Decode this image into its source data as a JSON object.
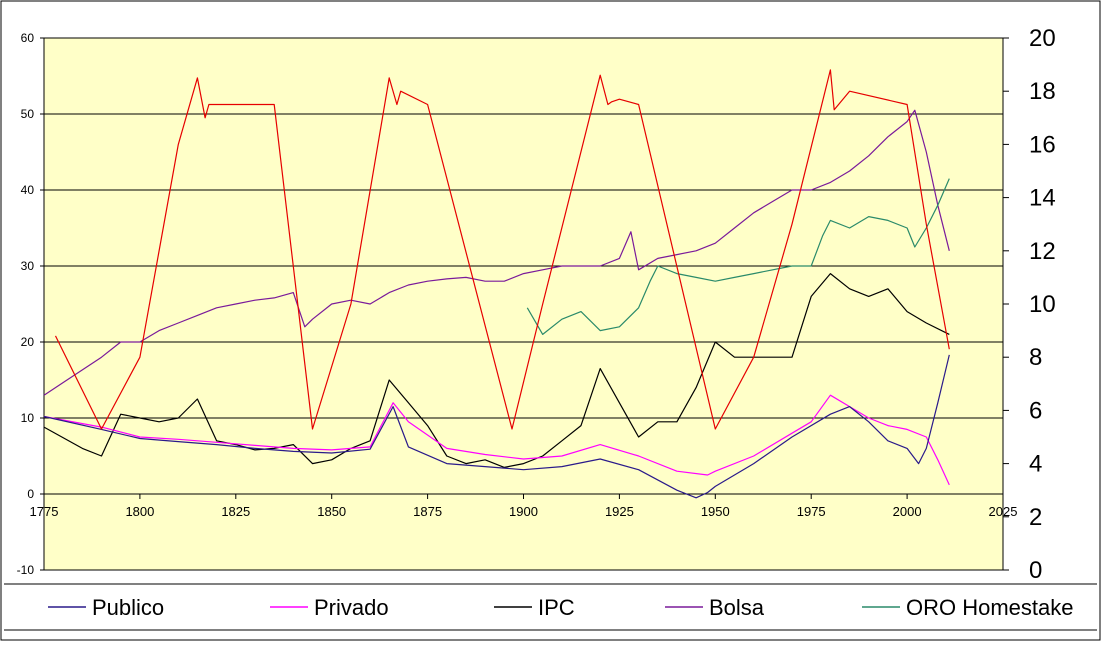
{
  "chart_data": {
    "type": "line",
    "title": "",
    "xlabel": "",
    "ylabel": "",
    "xlim": [
      1775,
      2025
    ],
    "ylim_left": [
      -10,
      60
    ],
    "ylim_right": [
      0,
      20
    ],
    "x_ticks": [
      "1775",
      "1800",
      "1825",
      "1850",
      "1875",
      "1900",
      "1925",
      "1950",
      "1975",
      "2000",
      "2025"
    ],
    "y_left_ticks": [
      "60",
      "50",
      "40",
      "30",
      "20",
      "10",
      "0",
      "-10"
    ],
    "y_right_ticks": [
      "20",
      "18",
      "16",
      "14",
      "12",
      "10",
      "8",
      "6",
      "4",
      "2",
      "0"
    ],
    "grid": "horizontal",
    "background": "#ffffc8",
    "legend_position": "bottom",
    "legend": [
      "Publico",
      "Privado",
      "IPC",
      "Bolsa",
      "ORO Homestake"
    ],
    "series": [
      {
        "name": "Publico",
        "axis": "left",
        "color": "#2a1a8a",
        "x": [
          1775,
          1790,
          1800,
          1810,
          1820,
          1830,
          1840,
          1850,
          1860,
          1866,
          1870,
          1880,
          1890,
          1900,
          1910,
          1920,
          1930,
          1940,
          1945,
          1948,
          1950,
          1960,
          1970,
          1980,
          1985,
          1990,
          1995,
          2000,
          2003,
          2005,
          2008,
          2011
        ],
        "y": [
          10.2,
          8.5,
          7.3,
          6.9,
          6.5,
          6.0,
          5.6,
          5.4,
          5.9,
          11.5,
          6.2,
          4.0,
          3.6,
          3.2,
          3.6,
          4.6,
          3.2,
          0.5,
          -0.5,
          0.2,
          1.0,
          4.0,
          7.5,
          10.5,
          11.5,
          9.5,
          7.0,
          6.0,
          4.0,
          6.0,
          12.0,
          18.3
        ]
      },
      {
        "name": "Privado",
        "axis": "left",
        "color": "#ff00ff",
        "x": [
          1775,
          1790,
          1800,
          1810,
          1820,
          1830,
          1840,
          1850,
          1860,
          1866,
          1870,
          1880,
          1890,
          1900,
          1910,
          1920,
          1930,
          1940,
          1948,
          1950,
          1960,
          1970,
          1975,
          1980,
          1985,
          1990,
          1995,
          2000,
          2005,
          2008,
          2011
        ],
        "y": [
          10.2,
          8.8,
          7.5,
          7.2,
          6.8,
          6.4,
          6.0,
          5.8,
          6.2,
          12.0,
          9.5,
          6.0,
          5.2,
          4.6,
          5.0,
          6.5,
          5.0,
          3.0,
          2.5,
          3.0,
          5.0,
          8.0,
          9.5,
          13.0,
          11.5,
          10.0,
          9.0,
          8.5,
          7.5,
          4.5,
          1.2
        ]
      },
      {
        "name": "IPC",
        "axis": "left",
        "color": "#000000",
        "x": [
          1775,
          1785,
          1790,
          1795,
          1800,
          1805,
          1810,
          1815,
          1820,
          1825,
          1830,
          1835,
          1840,
          1845,
          1850,
          1855,
          1860,
          1865,
          1870,
          1875,
          1880,
          1885,
          1890,
          1895,
          1900,
          1905,
          1910,
          1915,
          1920,
          1925,
          1930,
          1935,
          1940,
          1945,
          1950,
          1955,
          1960,
          1965,
          1970,
          1975,
          1980,
          1985,
          1990,
          1995,
          2000,
          2005,
          2011
        ],
        "y": [
          8.8,
          6.0,
          5.0,
          10.5,
          10.0,
          9.5,
          10.0,
          12.5,
          7.0,
          6.5,
          5.8,
          6.0,
          6.5,
          4.0,
          4.5,
          6.0,
          7.0,
          15.0,
          12.0,
          9.0,
          5.0,
          4.0,
          4.5,
          3.5,
          4.0,
          5.0,
          7.0,
          9.0,
          16.5,
          12.0,
          7.5,
          9.5,
          9.5,
          14.0,
          20.0,
          18.0,
          18.0,
          18.0,
          18.0,
          26.0,
          29.0,
          27.0,
          26.0,
          27.0,
          24.0,
          22.5,
          21.0
        ]
      },
      {
        "name": "Bolsa",
        "axis": "left",
        "color": "#7a1a9a",
        "x": [
          1775,
          1790,
          1795,
          1800,
          1805,
          1810,
          1815,
          1820,
          1825,
          1830,
          1835,
          1840,
          1843,
          1845,
          1850,
          1855,
          1860,
          1865,
          1870,
          1875,
          1880,
          1885,
          1890,
          1895,
          1900,
          1905,
          1910,
          1915,
          1920,
          1925,
          1928,
          1930,
          1935,
          1940,
          1945,
          1950,
          1955,
          1960,
          1965,
          1970,
          1975,
          1980,
          1985,
          1990,
          1995,
          2000,
          2002,
          2005,
          2008,
          2011
        ],
        "y": [
          13.0,
          18.0,
          20.0,
          20.0,
          21.5,
          22.5,
          23.5,
          24.5,
          25.0,
          25.5,
          25.8,
          26.5,
          22.0,
          23.0,
          25.0,
          25.5,
          25.0,
          26.5,
          27.5,
          28.0,
          28.3,
          28.5,
          28.0,
          28.0,
          29.0,
          29.5,
          30.0,
          30.0,
          30.0,
          31.0,
          34.5,
          29.5,
          31.0,
          31.5,
          32.0,
          33.0,
          35.0,
          37.0,
          38.5,
          40.0,
          40.0,
          41.0,
          42.5,
          44.5,
          47.0,
          49.0,
          50.5,
          45.0,
          38.0,
          32.0
        ]
      },
      {
        "name": "ORO Homestake",
        "axis": "left",
        "color": "#2a8a6a",
        "x": [
          1901,
          1905,
          1910,
          1915,
          1920,
          1925,
          1930,
          1933,
          1935,
          1940,
          1945,
          1950,
          1955,
          1960,
          1965,
          1970,
          1975,
          1978,
          1980,
          1985,
          1990,
          1995,
          2000,
          2002,
          2005,
          2008,
          2011
        ],
        "y": [
          24.5,
          21.0,
          23.0,
          24.0,
          21.5,
          22.0,
          24.5,
          28.0,
          30.0,
          29.0,
          28.5,
          28.0,
          28.5,
          29.0,
          29.5,
          30.0,
          30.0,
          34.0,
          36.0,
          35.0,
          36.5,
          36.0,
          35.0,
          32.5,
          35.0,
          38.0,
          41.5
        ]
      },
      {
        "name": "",
        "axis": "right",
        "color": "#e60000",
        "x": [
          1778,
          1790,
          1800,
          1810,
          1815,
          1817,
          1818,
          1820,
          1835,
          1845,
          1855,
          1865,
          1867,
          1868,
          1875,
          1897,
          1905,
          1920,
          1922,
          1923,
          1925,
          1930,
          1950,
          1960,
          1970,
          1980,
          1981,
          1985,
          2000,
          2005,
          2011
        ],
        "y": [
          8.8,
          5.3,
          8.0,
          16.0,
          18.5,
          17.0,
          17.5,
          17.5,
          17.5,
          5.3,
          10.0,
          18.5,
          17.5,
          18.0,
          17.5,
          5.3,
          10.0,
          18.6,
          17.5,
          17.6,
          17.7,
          17.5,
          5.3,
          8.0,
          13.0,
          18.8,
          17.3,
          18.0,
          17.5,
          13.0,
          8.3
        ]
      }
    ]
  }
}
